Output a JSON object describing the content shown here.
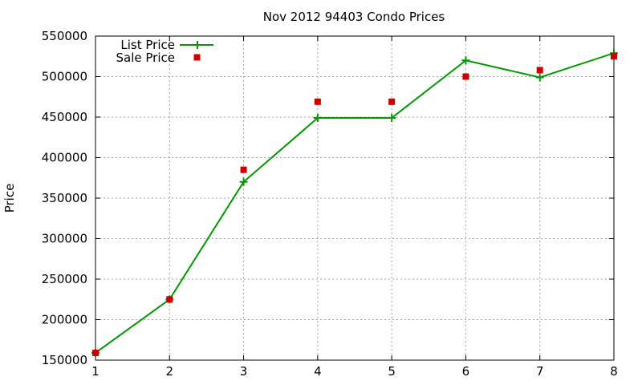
{
  "chart_data": {
    "type": "line",
    "title": "Nov 2012 94403 Condo Prices",
    "xlabel": "",
    "ylabel": "Price",
    "x": [
      1,
      2,
      3,
      4,
      5,
      6,
      7,
      8
    ],
    "xlim": [
      1,
      8
    ],
    "ylim": [
      150000,
      550000
    ],
    "x_ticks": [
      "1",
      "2",
      "3",
      "4",
      "5",
      "6",
      "7",
      "8"
    ],
    "y_ticks": [
      "150000",
      "200000",
      "250000",
      "300000",
      "350000",
      "400000",
      "450000",
      "500000",
      "550000"
    ],
    "y_tick_values": [
      150000,
      200000,
      250000,
      300000,
      350000,
      400000,
      450000,
      500000,
      550000
    ],
    "grid": true,
    "legend_position": "top-left",
    "series": [
      {
        "name": "List Price",
        "style": "line-plus",
        "color": "#009900",
        "values": [
          159000,
          225000,
          370000,
          449000,
          449000,
          520000,
          499000,
          529000
        ]
      },
      {
        "name": "Sale Price",
        "style": "square-points",
        "color": "#cc0000",
        "values": [
          159000,
          225000,
          385000,
          469000,
          469000,
          500000,
          508000,
          525000
        ]
      }
    ]
  }
}
